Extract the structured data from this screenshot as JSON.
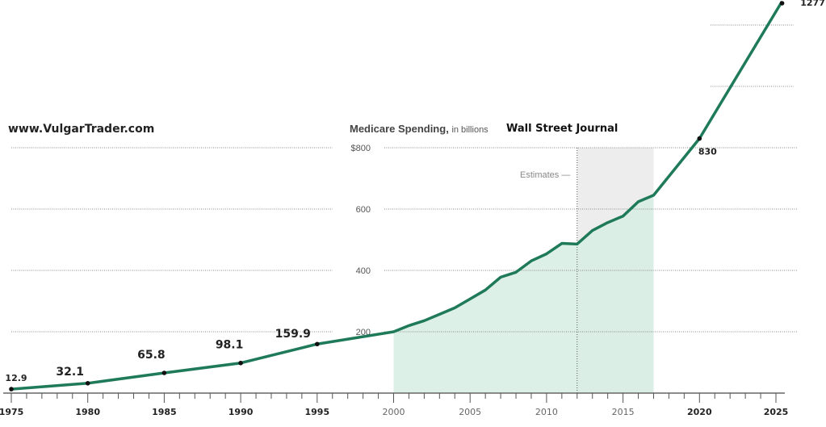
{
  "watermark": "www.VulgarTrader.com",
  "source": "Wall Street Journal",
  "chart_data": {
    "type": "area",
    "title": "Medicare Spending,",
    "subtitle": "in billions",
    "annotation_estimates": "Estimates —",
    "estimates_range": [
      2012,
      2017
    ],
    "xlim": [
      1975,
      2025
    ],
    "ylim": [
      0,
      1277
    ],
    "grid": true,
    "x_ticks": [
      "1975",
      "1980",
      "1985",
      "1990",
      "1995",
      "2000",
      "2005",
      "2010",
      "2015",
      "2020",
      "2025"
    ],
    "y_ticks": [
      {
        "value": 200,
        "label": "200"
      },
      {
        "value": 400,
        "label": "400"
      },
      {
        "value": 600,
        "label": "600"
      },
      {
        "value": 800,
        "label": "$800"
      }
    ],
    "series": [
      {
        "color": "#1f7a5a",
        "fill": "#d7ede3",
        "points": [
          [
            1975,
            12.9
          ],
          [
            1980,
            32.1
          ],
          [
            1985,
            65.8
          ],
          [
            1990,
            98.1
          ],
          [
            1995,
            159.9
          ],
          [
            2000,
            200
          ],
          [
            2001,
            220
          ],
          [
            2002,
            236
          ],
          [
            2003,
            257
          ],
          [
            2004,
            278
          ],
          [
            2005,
            307
          ],
          [
            2006,
            336
          ],
          [
            2007,
            378
          ],
          [
            2008,
            394
          ],
          [
            2009,
            431
          ],
          [
            2010,
            454
          ],
          [
            2011,
            488
          ],
          [
            2012,
            486
          ],
          [
            2013,
            530
          ],
          [
            2014,
            556
          ],
          [
            2015,
            577
          ],
          [
            2016,
            624
          ],
          [
            2017,
            645
          ],
          [
            2020,
            830
          ],
          [
            2025.4,
            1277
          ]
        ]
      }
    ],
    "data_labels": [
      {
        "x": 1975,
        "y": 12.9,
        "label": "12.9"
      },
      {
        "x": 1980,
        "y": 32.1,
        "label": "32.1"
      },
      {
        "x": 1985,
        "y": 65.8,
        "label": "65.8"
      },
      {
        "x": 1990,
        "y": 98.1,
        "label": "98.1"
      },
      {
        "x": 1995,
        "y": 159.9,
        "label": "159.9"
      },
      {
        "x": 2020,
        "y": 830,
        "label": "830"
      },
      {
        "x": 2025.4,
        "y": 1277,
        "label": "1277"
      }
    ]
  }
}
